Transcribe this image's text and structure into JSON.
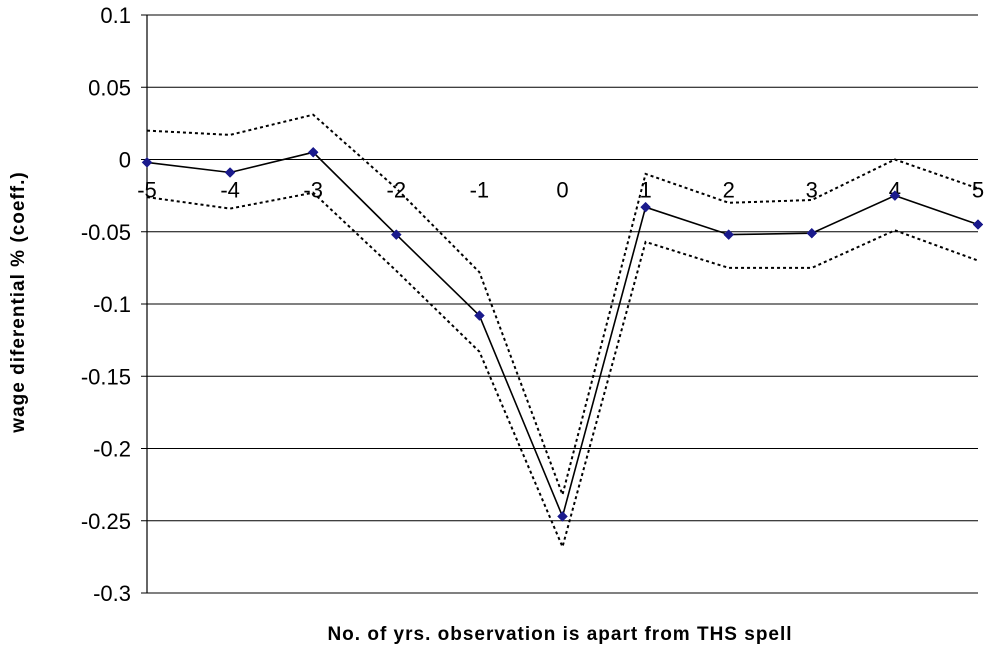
{
  "chart_data": {
    "type": "line",
    "title": "",
    "xlabel": "No. of yrs. observation is apart from THS spell",
    "ylabel": "wage diferential % (coeff.)",
    "x": [
      -5,
      -4,
      -3,
      -2,
      -1,
      0,
      1,
      2,
      3,
      4,
      5
    ],
    "x_tick_labels": [
      "-5",
      "-4",
      "-3",
      "-2",
      "-1",
      "0",
      "1",
      "2",
      "3",
      "4",
      "5"
    ],
    "y_tick_labels": [
      "0.1",
      "0.05",
      "0",
      "-0.05",
      "-0.1",
      "-0.15",
      "-0.2",
      "-0.25",
      "-0.3"
    ],
    "y_ticks": [
      0.1,
      0.05,
      0,
      -0.05,
      -0.1,
      -0.15,
      -0.2,
      -0.25,
      -0.3
    ],
    "ylim": [
      -0.3,
      0.1
    ],
    "grid": true,
    "legend": "none",
    "series": [
      {
        "values": [
          -0.002,
          -0.009,
          0.005,
          -0.052,
          -0.108,
          -0.247,
          -0.033,
          -0.052,
          -0.051,
          -0.025,
          -0.045
        ],
        "style": "solid",
        "marker": "diamond",
        "color": "#000000",
        "marker_color": "#1a1a8c"
      },
      {
        "values": [
          0.02,
          0.017,
          0.031,
          -0.02,
          -0.078,
          -0.232,
          -0.01,
          -0.03,
          -0.028,
          0.0,
          -0.02
        ],
        "style": "dotted",
        "color": "#000000"
      },
      {
        "values": [
          -0.026,
          -0.034,
          -0.023,
          -0.077,
          -0.133,
          -0.268,
          -0.057,
          -0.075,
          -0.075,
          -0.049,
          -0.07
        ],
        "style": "dotted",
        "color": "#000000"
      }
    ]
  }
}
